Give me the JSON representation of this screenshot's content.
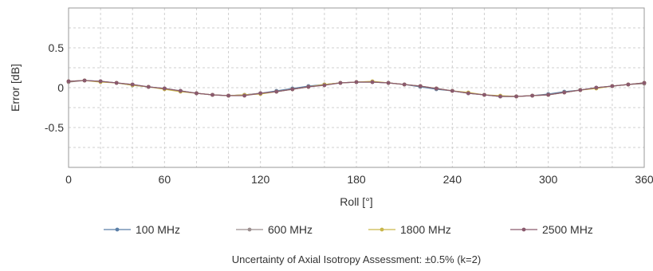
{
  "chart_data": {
    "type": "line",
    "xlabel": "Roll [°]",
    "ylabel": "Error [dB]",
    "xlim": [
      0,
      360
    ],
    "ylim": [
      -1,
      1
    ],
    "xticks": [
      0,
      60,
      120,
      180,
      240,
      300,
      360
    ],
    "yticks": [
      0.5,
      0,
      -0.5
    ],
    "ytick_labels": [
      "0.5",
      "0",
      "-0.5"
    ],
    "grid": true,
    "legend_position": "bottom",
    "x": [
      0,
      10,
      20,
      30,
      40,
      50,
      60,
      70,
      80,
      90,
      100,
      110,
      120,
      130,
      140,
      150,
      160,
      170,
      180,
      190,
      200,
      210,
      220,
      230,
      240,
      250,
      260,
      270,
      280,
      290,
      300,
      310,
      320,
      330,
      340,
      350,
      360
    ],
    "series": [
      {
        "name": "100 MHz",
        "color": "#5a7fa8",
        "values": [
          0.08,
          0.09,
          0.08,
          0.06,
          0.03,
          0.01,
          -0.01,
          -0.04,
          -0.07,
          -0.09,
          -0.1,
          -0.09,
          -0.07,
          -0.04,
          -0.01,
          0.02,
          0.04,
          0.06,
          0.07,
          0.07,
          0.06,
          0.04,
          0.01,
          -0.02,
          -0.04,
          -0.07,
          -0.09,
          -0.11,
          -0.11,
          -0.1,
          -0.08,
          -0.05,
          -0.03,
          0.0,
          0.02,
          0.04,
          0.06
        ]
      },
      {
        "name": "600 MHz",
        "color": "#9c8f8f",
        "values": [
          0.07,
          0.09,
          0.08,
          0.06,
          0.04,
          0.01,
          -0.01,
          -0.04,
          -0.07,
          -0.09,
          -0.1,
          -0.09,
          -0.07,
          -0.05,
          -0.02,
          0.01,
          0.04,
          0.06,
          0.07,
          0.07,
          0.06,
          0.04,
          0.02,
          -0.01,
          -0.04,
          -0.07,
          -0.09,
          -0.11,
          -0.11,
          -0.1,
          -0.09,
          -0.06,
          -0.03,
          0.0,
          0.02,
          0.04,
          0.05
        ]
      },
      {
        "name": "1800 MHz",
        "color": "#c9b64a",
        "values": [
          0.08,
          0.09,
          0.07,
          0.06,
          0.03,
          0.01,
          -0.02,
          -0.05,
          -0.07,
          -0.09,
          -0.1,
          -0.09,
          -0.08,
          -0.05,
          -0.02,
          0.01,
          0.04,
          0.06,
          0.07,
          0.08,
          0.06,
          0.04,
          0.02,
          -0.01,
          -0.04,
          -0.06,
          -0.09,
          -0.1,
          -0.11,
          -0.1,
          -0.09,
          -0.06,
          -0.03,
          -0.01,
          0.02,
          0.04,
          0.06
        ]
      },
      {
        "name": "2500 MHz",
        "color": "#8a5a6e",
        "values": [
          0.08,
          0.09,
          0.08,
          0.06,
          0.04,
          0.01,
          -0.01,
          -0.04,
          -0.07,
          -0.09,
          -0.1,
          -0.1,
          -0.07,
          -0.05,
          -0.02,
          0.01,
          0.03,
          0.06,
          0.07,
          0.07,
          0.06,
          0.04,
          0.02,
          -0.01,
          -0.04,
          -0.07,
          -0.09,
          -0.11,
          -0.11,
          -0.1,
          -0.09,
          -0.06,
          -0.03,
          0.0,
          0.02,
          0.04,
          0.06
        ]
      }
    ]
  },
  "footnote": "Uncertainty of Axial Isotropy Assessment: ±0.5% (k=2)"
}
